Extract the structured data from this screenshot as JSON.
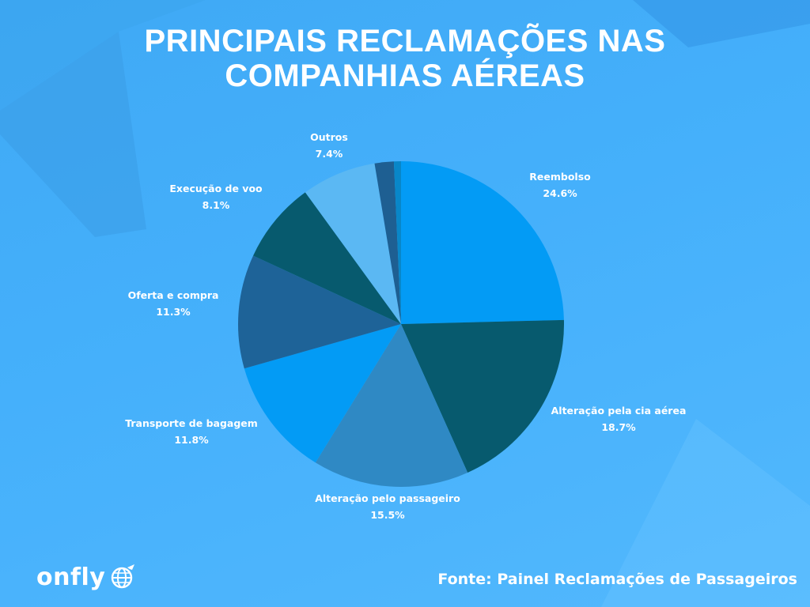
{
  "header": {
    "title_line1": "PRINCIPAIS RECLAMAÇÕES NAS",
    "title_line2": "COMPANHIAS AÉREAS"
  },
  "footer": {
    "brand": "onfly",
    "source": "Fonte: Painel Reclamações de Passageiros"
  },
  "colors": {
    "background": "#45b0fb",
    "text": "#ffffff"
  },
  "chart_data": {
    "type": "pie",
    "title": "PRINCIPAIS RECLAMAÇÕES NAS COMPANHIAS AÉREAS",
    "slices": [
      {
        "label": "Reembolso",
        "value": 24.6,
        "display": "24.6%",
        "color": "#039bf5"
      },
      {
        "label": "Alteração pela cia aérea",
        "value": 18.7,
        "display": "18.7%",
        "color": "#075a6e"
      },
      {
        "label": "Alteração pelo passageiro",
        "value": 15.5,
        "display": "15.5%",
        "color": "#2f89c4"
      },
      {
        "label": "Transporte de bagagem",
        "value": 11.8,
        "display": "11.8%",
        "color": "#039bf5"
      },
      {
        "label": "Oferta e compra",
        "value": 11.3,
        "display": "11.3%",
        "color": "#1e6398"
      },
      {
        "label": "Execução de voo",
        "value": 8.1,
        "display": "8.1%",
        "color": "#075a6e"
      },
      {
        "label": "Outros",
        "value": 7.4,
        "display": "7.4%",
        "color": "#5bb8f3"
      },
      {
        "label": "",
        "value": 1.9,
        "display": "",
        "color": "#1e5f92"
      },
      {
        "label": "",
        "value": 0.7,
        "display": "",
        "color": "#0887c9"
      }
    ]
  }
}
